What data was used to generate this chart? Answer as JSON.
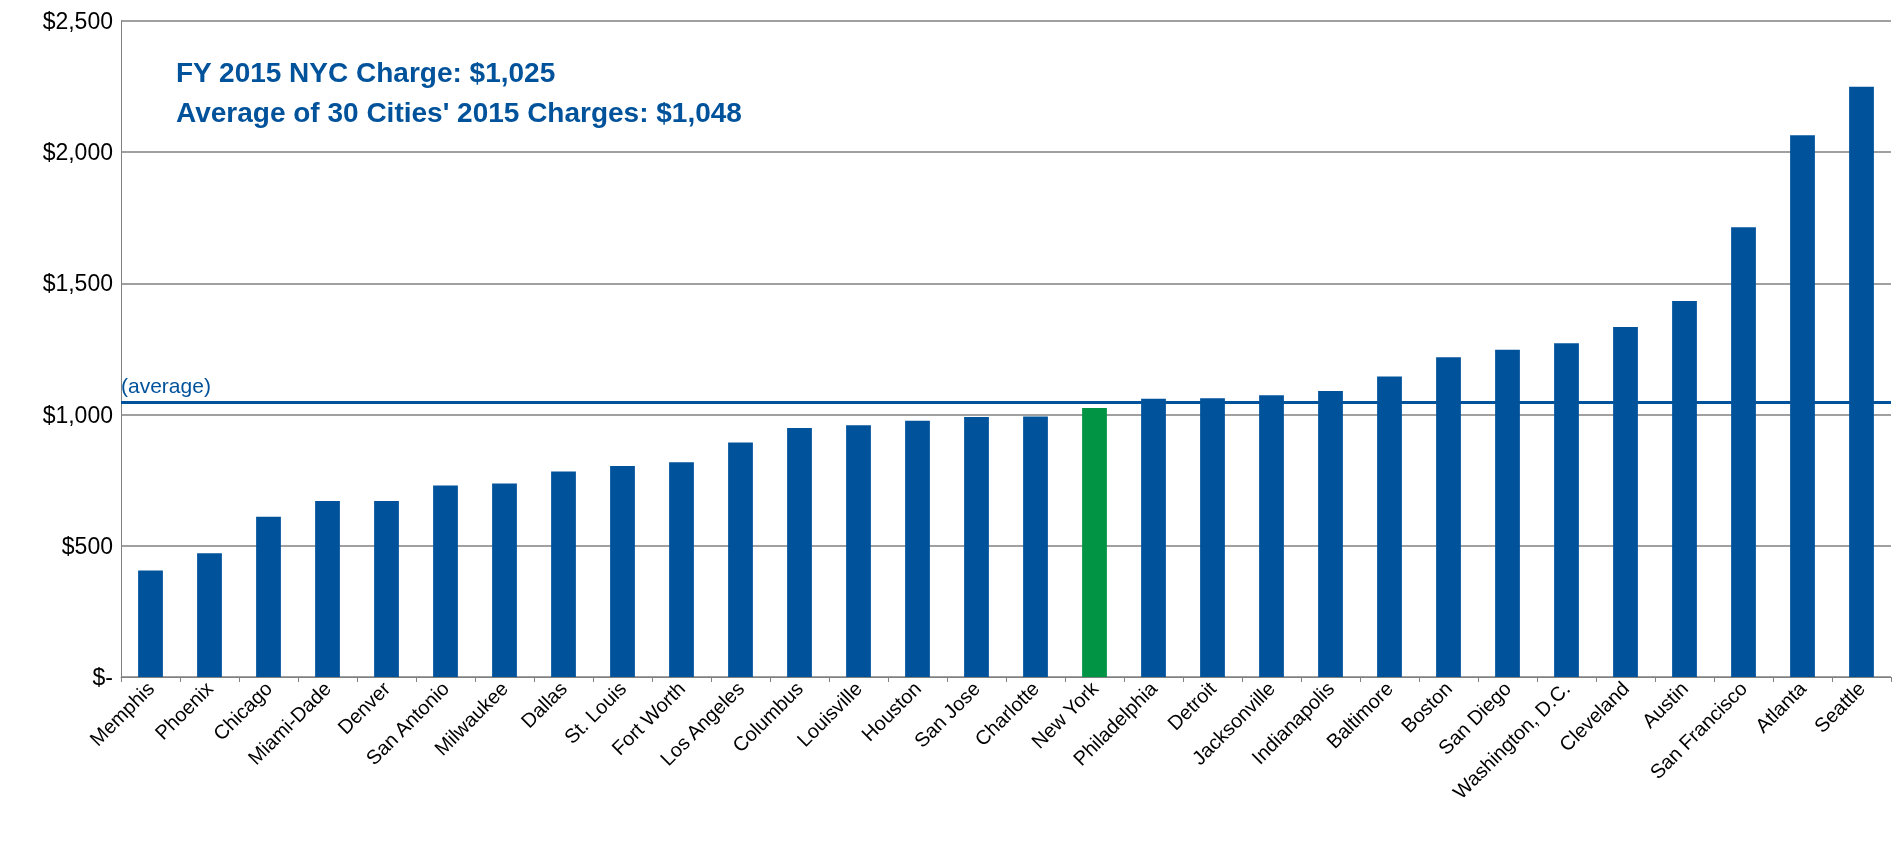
{
  "chart_data": {
    "type": "bar",
    "categories": [
      "Memphis",
      "Phoenix",
      "Chicago",
      "Miami-Dade",
      "Denver",
      "San Antonio",
      "Milwaukee",
      "Dallas",
      "St. Louis",
      "Fort Worth",
      "Los Angeles",
      "Columbus",
      "Louisville",
      "Houston",
      "San Jose",
      "Charlotte",
      "New York",
      "Philadelphia",
      "Detroit",
      "Jacksonville",
      "Indianapolis",
      "Baltimore",
      "Boston",
      "San Diego",
      "Washington, D.C.",
      "Cleveland",
      "Austin",
      "San Francisco",
      "Atlanta",
      "Seattle"
    ],
    "values": [
      406,
      472,
      611,
      671,
      671,
      730,
      737,
      783,
      804,
      818,
      894,
      949,
      959,
      977,
      991,
      993,
      1025,
      1060,
      1062,
      1074,
      1090,
      1145,
      1219,
      1247,
      1272,
      1334,
      1433,
      1714,
      2065,
      2249
    ],
    "colors": [
      "#00529b",
      "#00529b",
      "#00529b",
      "#00529b",
      "#00529b",
      "#00529b",
      "#00529b",
      "#00529b",
      "#00529b",
      "#00529b",
      "#00529b",
      "#00529b",
      "#00529b",
      "#00529b",
      "#00529b",
      "#00529b",
      "#009444",
      "#00529b",
      "#00529b",
      "#00529b",
      "#00529b",
      "#00529b",
      "#00529b",
      "#00529b",
      "#00529b",
      "#00529b",
      "#00529b",
      "#00529b",
      "#00529b",
      "#00529b"
    ],
    "ylim": [
      0,
      2500
    ],
    "yticks": [
      {
        "value": 0,
        "label": "$-"
      },
      {
        "value": 500,
        "label": "$500"
      },
      {
        "value": 1000,
        "label": "$1,000"
      },
      {
        "value": 1500,
        "label": "$1,500"
      },
      {
        "value": 2000,
        "label": "$2,000"
      },
      {
        "value": 2500,
        "label": "$2,500"
      }
    ],
    "grid": "y",
    "ref_lines": [
      {
        "axis": "y",
        "value": 1048,
        "label": "(average)",
        "color": "#00529b"
      }
    ],
    "annotations": [
      "FY 2015 NYC Charge: $1,025",
      "Average of 30 Cities' 2015 Charges: $1,048"
    ]
  }
}
